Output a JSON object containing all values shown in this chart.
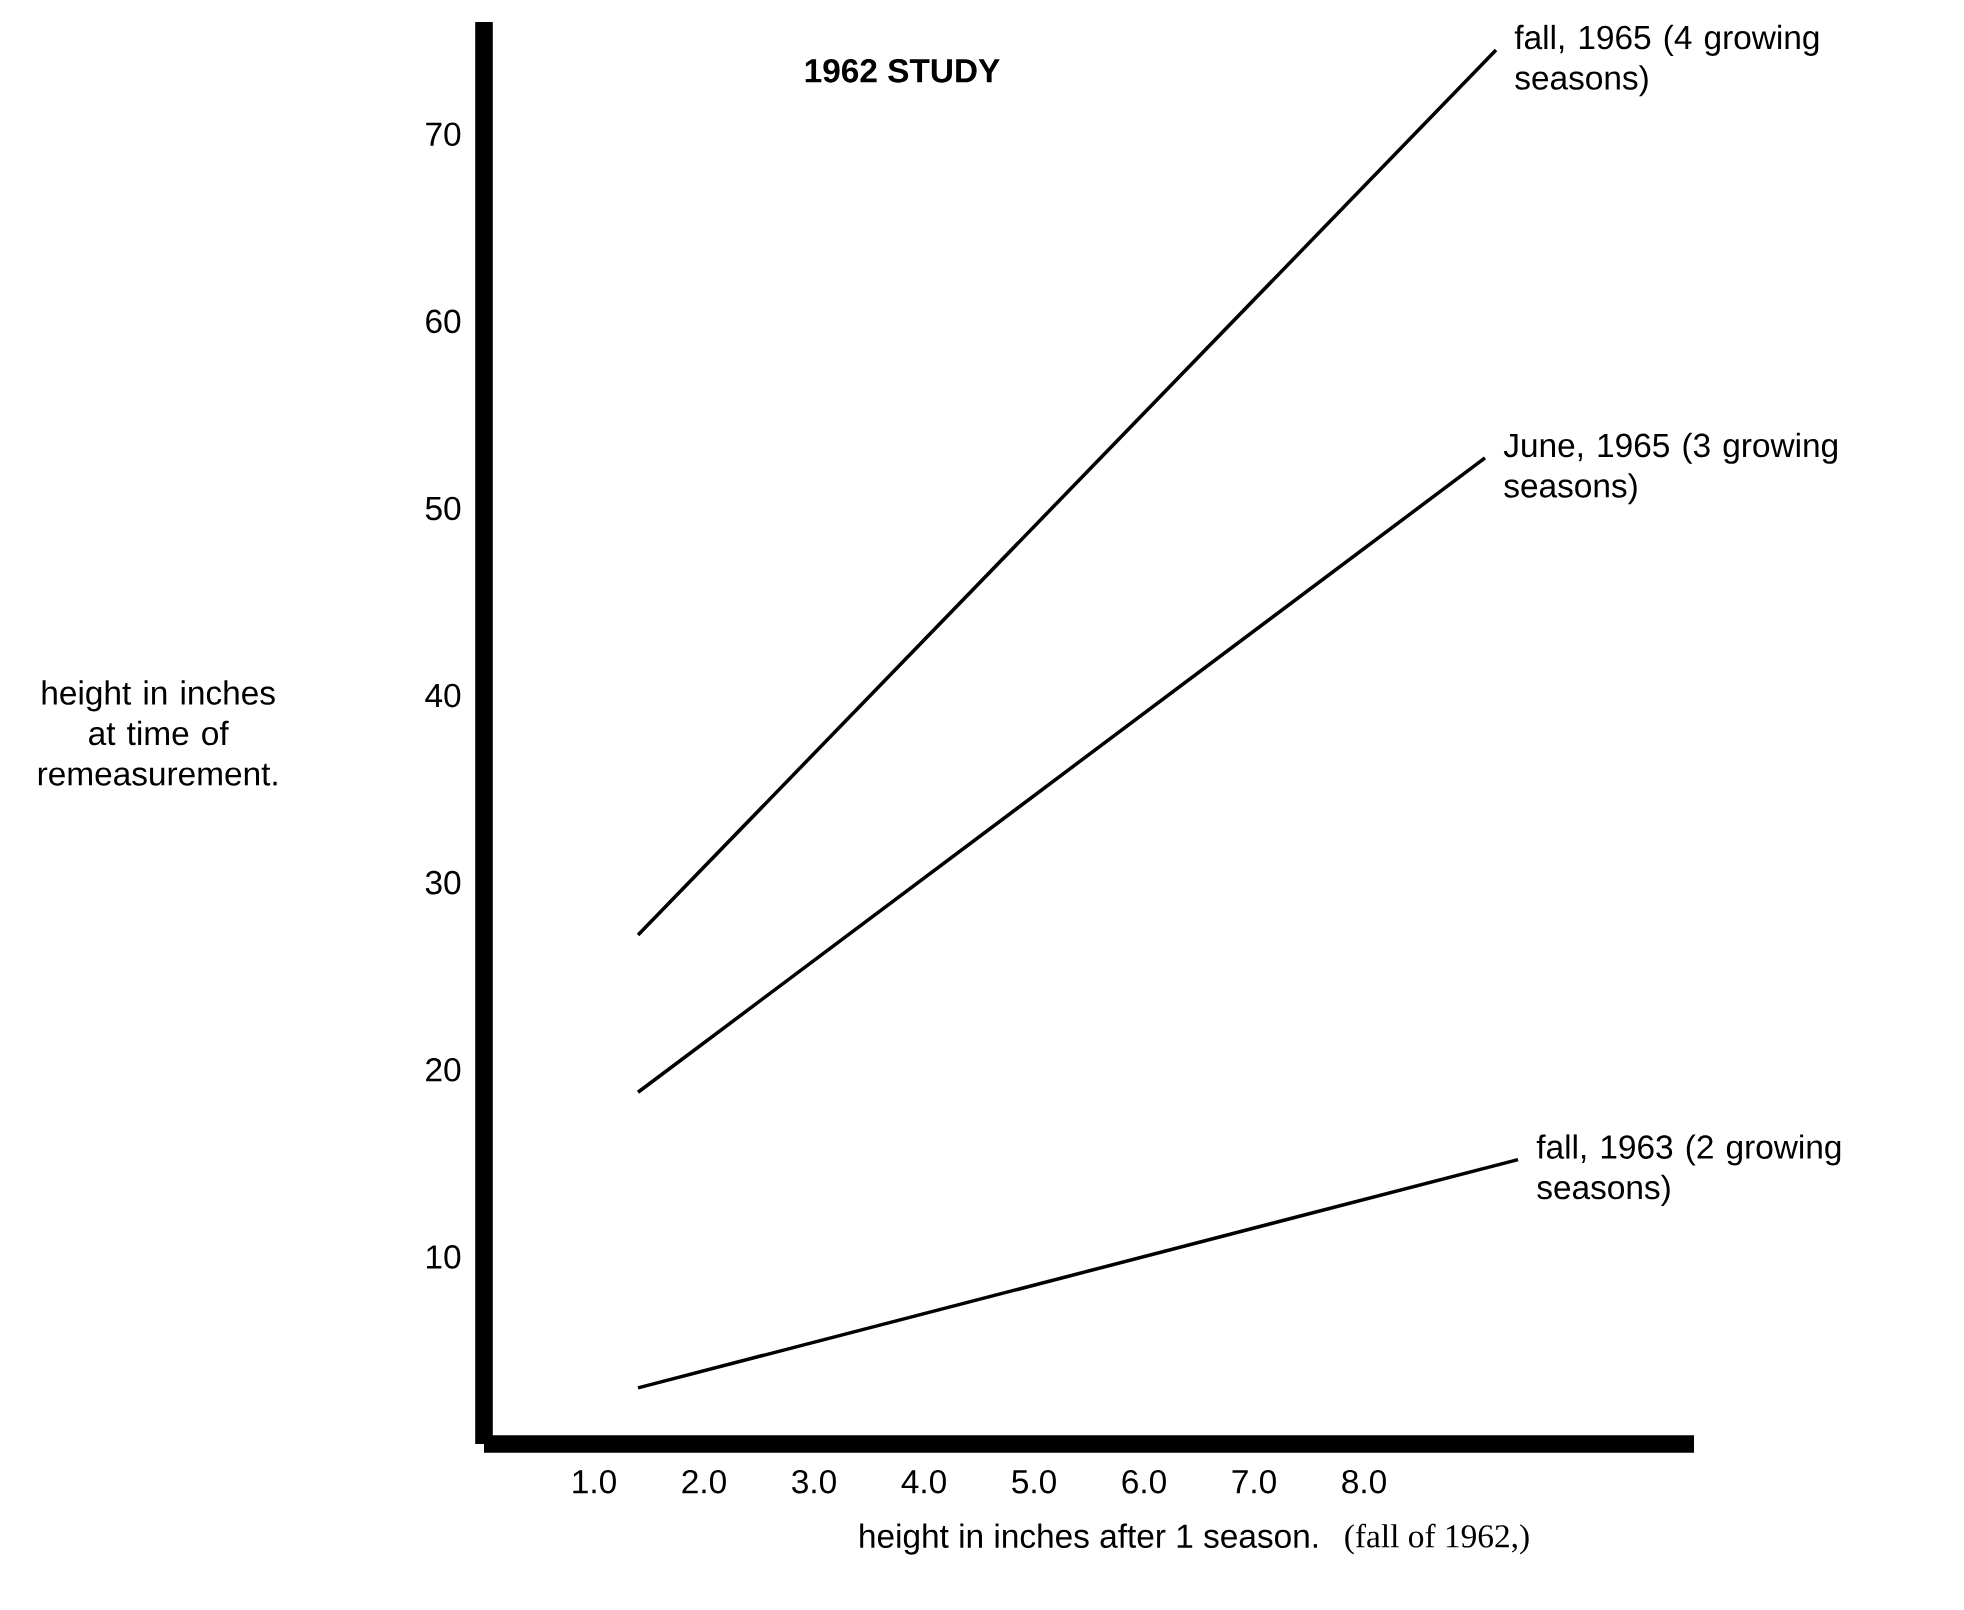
{
  "chart_data": {
    "type": "line",
    "title": "1962 STUDY",
    "xlabel": "height in inches after 1 season.",
    "ylabel": "height in inches at time of remeasurement.",
    "annotations": [
      "(fall of 1962,)"
    ],
    "xlim": [
      0,
      11
    ],
    "ylim": [
      0,
      76
    ],
    "xticks": [
      {
        "value": 1,
        "label": "1.0"
      },
      {
        "value": 2,
        "label": "2.0"
      },
      {
        "value": 3,
        "label": "3.0"
      },
      {
        "value": 4,
        "label": "4.0"
      },
      {
        "value": 5,
        "label": "5.0"
      },
      {
        "value": 6,
        "label": "6.0"
      },
      {
        "value": 7,
        "label": "7.0"
      },
      {
        "value": 8,
        "label": "8.0"
      }
    ],
    "yticks": [
      10,
      20,
      30,
      40,
      50,
      60,
      70
    ],
    "grid": false,
    "marker": "none",
    "line_style": "solid",
    "series": [
      {
        "name": "fall, 1965 (4 growing seasons)",
        "color": "#000000",
        "x": [
          1.4,
          9.2
        ],
        "values": [
          27.2,
          74.5
        ]
      },
      {
        "name": "June, 1965 (3 growing seasons)",
        "color": "#000000",
        "x": [
          1.4,
          9.1
        ],
        "values": [
          18.8,
          52.7
        ]
      },
      {
        "name": "fall, 1963 (2 growing seasons)",
        "color": "#000000",
        "x": [
          1.4,
          9.4
        ],
        "values": [
          3.0,
          15.2
        ]
      }
    ]
  }
}
